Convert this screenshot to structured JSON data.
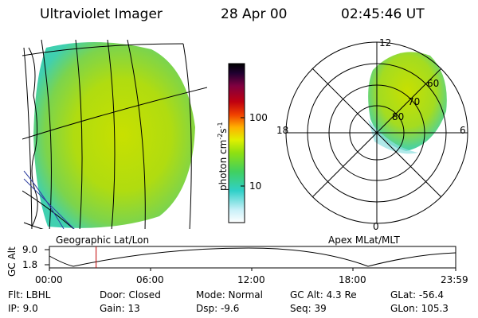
{
  "header": {
    "instrument": "Ultraviolet Imager",
    "date": "28 Apr 00",
    "time": "02:45:46 UT"
  },
  "colorbar": {
    "unit": "photon cm",
    "unit_sup1": "-2",
    "unit_mid": "s",
    "unit_sup2": "-1",
    "ticks": [
      "100",
      "10"
    ]
  },
  "polar_plot": {
    "mlt_labels": {
      "top": "12",
      "left": "18",
      "right": "6",
      "bottom": "0"
    },
    "lat_labels": [
      "60",
      "70",
      "80"
    ],
    "caption": "Apex MLat/MLT"
  },
  "geo_plot": {
    "caption": "Geographic Lat/Lon"
  },
  "altitude_plot": {
    "ylabel": "GC Alt",
    "yticks": [
      "9.0",
      "1.8"
    ],
    "xticks": [
      "00:00",
      "06:00",
      "12:00",
      "18:00",
      "23:59"
    ],
    "marker_time_hours": 2.76,
    "marker_color": "#c00000"
  },
  "status": {
    "filter": "Flt: LBHL",
    "ip": "IP:  9.0",
    "door": "Door: Closed",
    "gain": "Gain: 13",
    "mode": "Mode: Normal",
    "dsp": "Dsp:   -9.6",
    "gc_alt": "GC Alt: 4.3 Re",
    "seq": "Seq: 39",
    "glat": "GLat:  -56.4",
    "glon": "GLon: 105.3"
  }
}
